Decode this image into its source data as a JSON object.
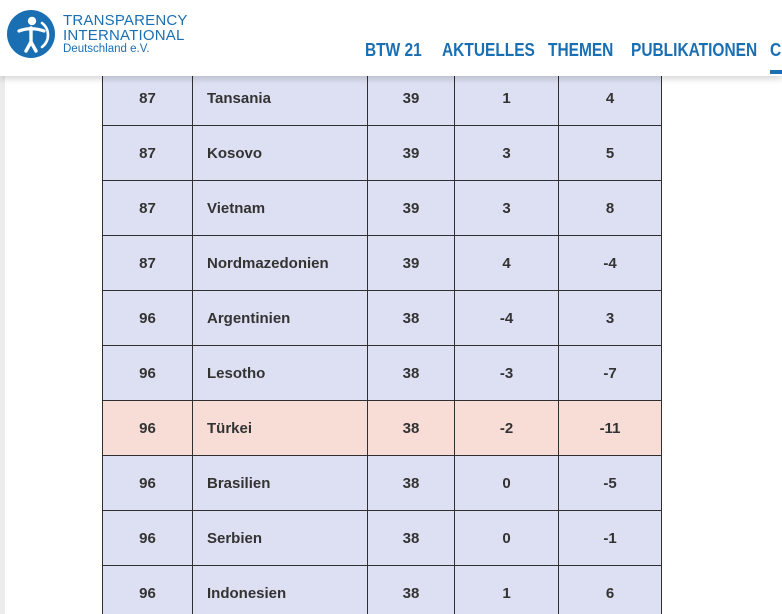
{
  "brand": {
    "line1": "TRANSPARENCY",
    "line2": "INTERNATIONAL",
    "line3": "Deutschland e.V.",
    "logo_icon": "transparency-logo-icon",
    "color": "#1a6fb3"
  },
  "nav": {
    "items": [
      {
        "label": "BTW 21"
      },
      {
        "label": "AKTUELLES"
      },
      {
        "label": "THEMEN"
      },
      {
        "label": "PUBLIKATIONEN"
      },
      {
        "label": "CI"
      }
    ]
  },
  "table": {
    "row_color": "#dde0f2",
    "highlight_color": "#f7ddd6",
    "rows": [
      {
        "rank": "87",
        "country": "Tansania",
        "score": "39",
        "change1": "1",
        "change2": "4",
        "highlight": false
      },
      {
        "rank": "87",
        "country": "Kosovo",
        "score": "39",
        "change1": "3",
        "change2": "5",
        "highlight": false
      },
      {
        "rank": "87",
        "country": "Vietnam",
        "score": "39",
        "change1": "3",
        "change2": "8",
        "highlight": false
      },
      {
        "rank": "87",
        "country": "Nordmazedonien",
        "score": "39",
        "change1": "4",
        "change2": "-4",
        "highlight": false
      },
      {
        "rank": "96",
        "country": "Argentinien",
        "score": "38",
        "change1": "-4",
        "change2": "3",
        "highlight": false
      },
      {
        "rank": "96",
        "country": "Lesotho",
        "score": "38",
        "change1": "-3",
        "change2": "-7",
        "highlight": false
      },
      {
        "rank": "96",
        "country": "Türkei",
        "score": "38",
        "change1": "-2",
        "change2": "-11",
        "highlight": true
      },
      {
        "rank": "96",
        "country": "Brasilien",
        "score": "38",
        "change1": "0",
        "change2": "-5",
        "highlight": false
      },
      {
        "rank": "96",
        "country": "Serbien",
        "score": "38",
        "change1": "0",
        "change2": "-1",
        "highlight": false
      },
      {
        "rank": "96",
        "country": "Indonesien",
        "score": "38",
        "change1": "1",
        "change2": "6",
        "highlight": false
      }
    ]
  }
}
